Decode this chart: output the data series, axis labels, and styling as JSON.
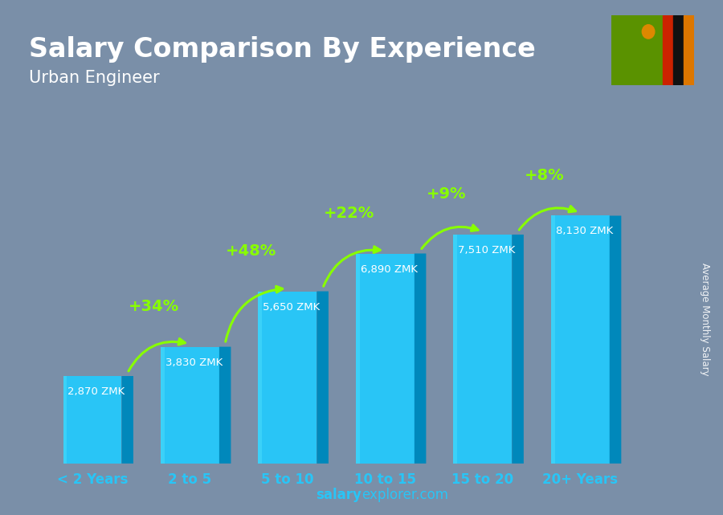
{
  "title": "Salary Comparison By Experience",
  "subtitle": "Urban Engineer",
  "categories": [
    "< 2 Years",
    "2 to 5",
    "5 to 10",
    "10 to 15",
    "15 to 20",
    "20+ Years"
  ],
  "values": [
    2870,
    3830,
    5650,
    6890,
    7510,
    8130
  ],
  "value_labels": [
    "2,870 ZMK",
    "3,830 ZMK",
    "5,650 ZMK",
    "6,890 ZMK",
    "7,510 ZMK",
    "8,130 ZMK"
  ],
  "pct_changes": [
    "+34%",
    "+48%",
    "+22%",
    "+9%",
    "+8%"
  ],
  "bar_color_face": "#29C5F6",
  "bar_color_dark": "#0088BB",
  "bar_color_top": "#55DDFF",
  "bar_color_right": "#0099CC",
  "background_color": "#7a8fa8",
  "title_color": "#ffffff",
  "subtitle_color": "#ffffff",
  "label_color": "#ffffff",
  "pct_color": "#88ff00",
  "xlabel_color": "#29C5F6",
  "ylabel_text": "Average Monthly Salary",
  "footer_salary": "salary",
  "footer_rest": "explorer.com",
  "ylim_max": 9800,
  "flag_green": "#5a8a00",
  "flag_red": "#cc2200",
  "flag_black": "#111111",
  "flag_orange": "#dd7700"
}
